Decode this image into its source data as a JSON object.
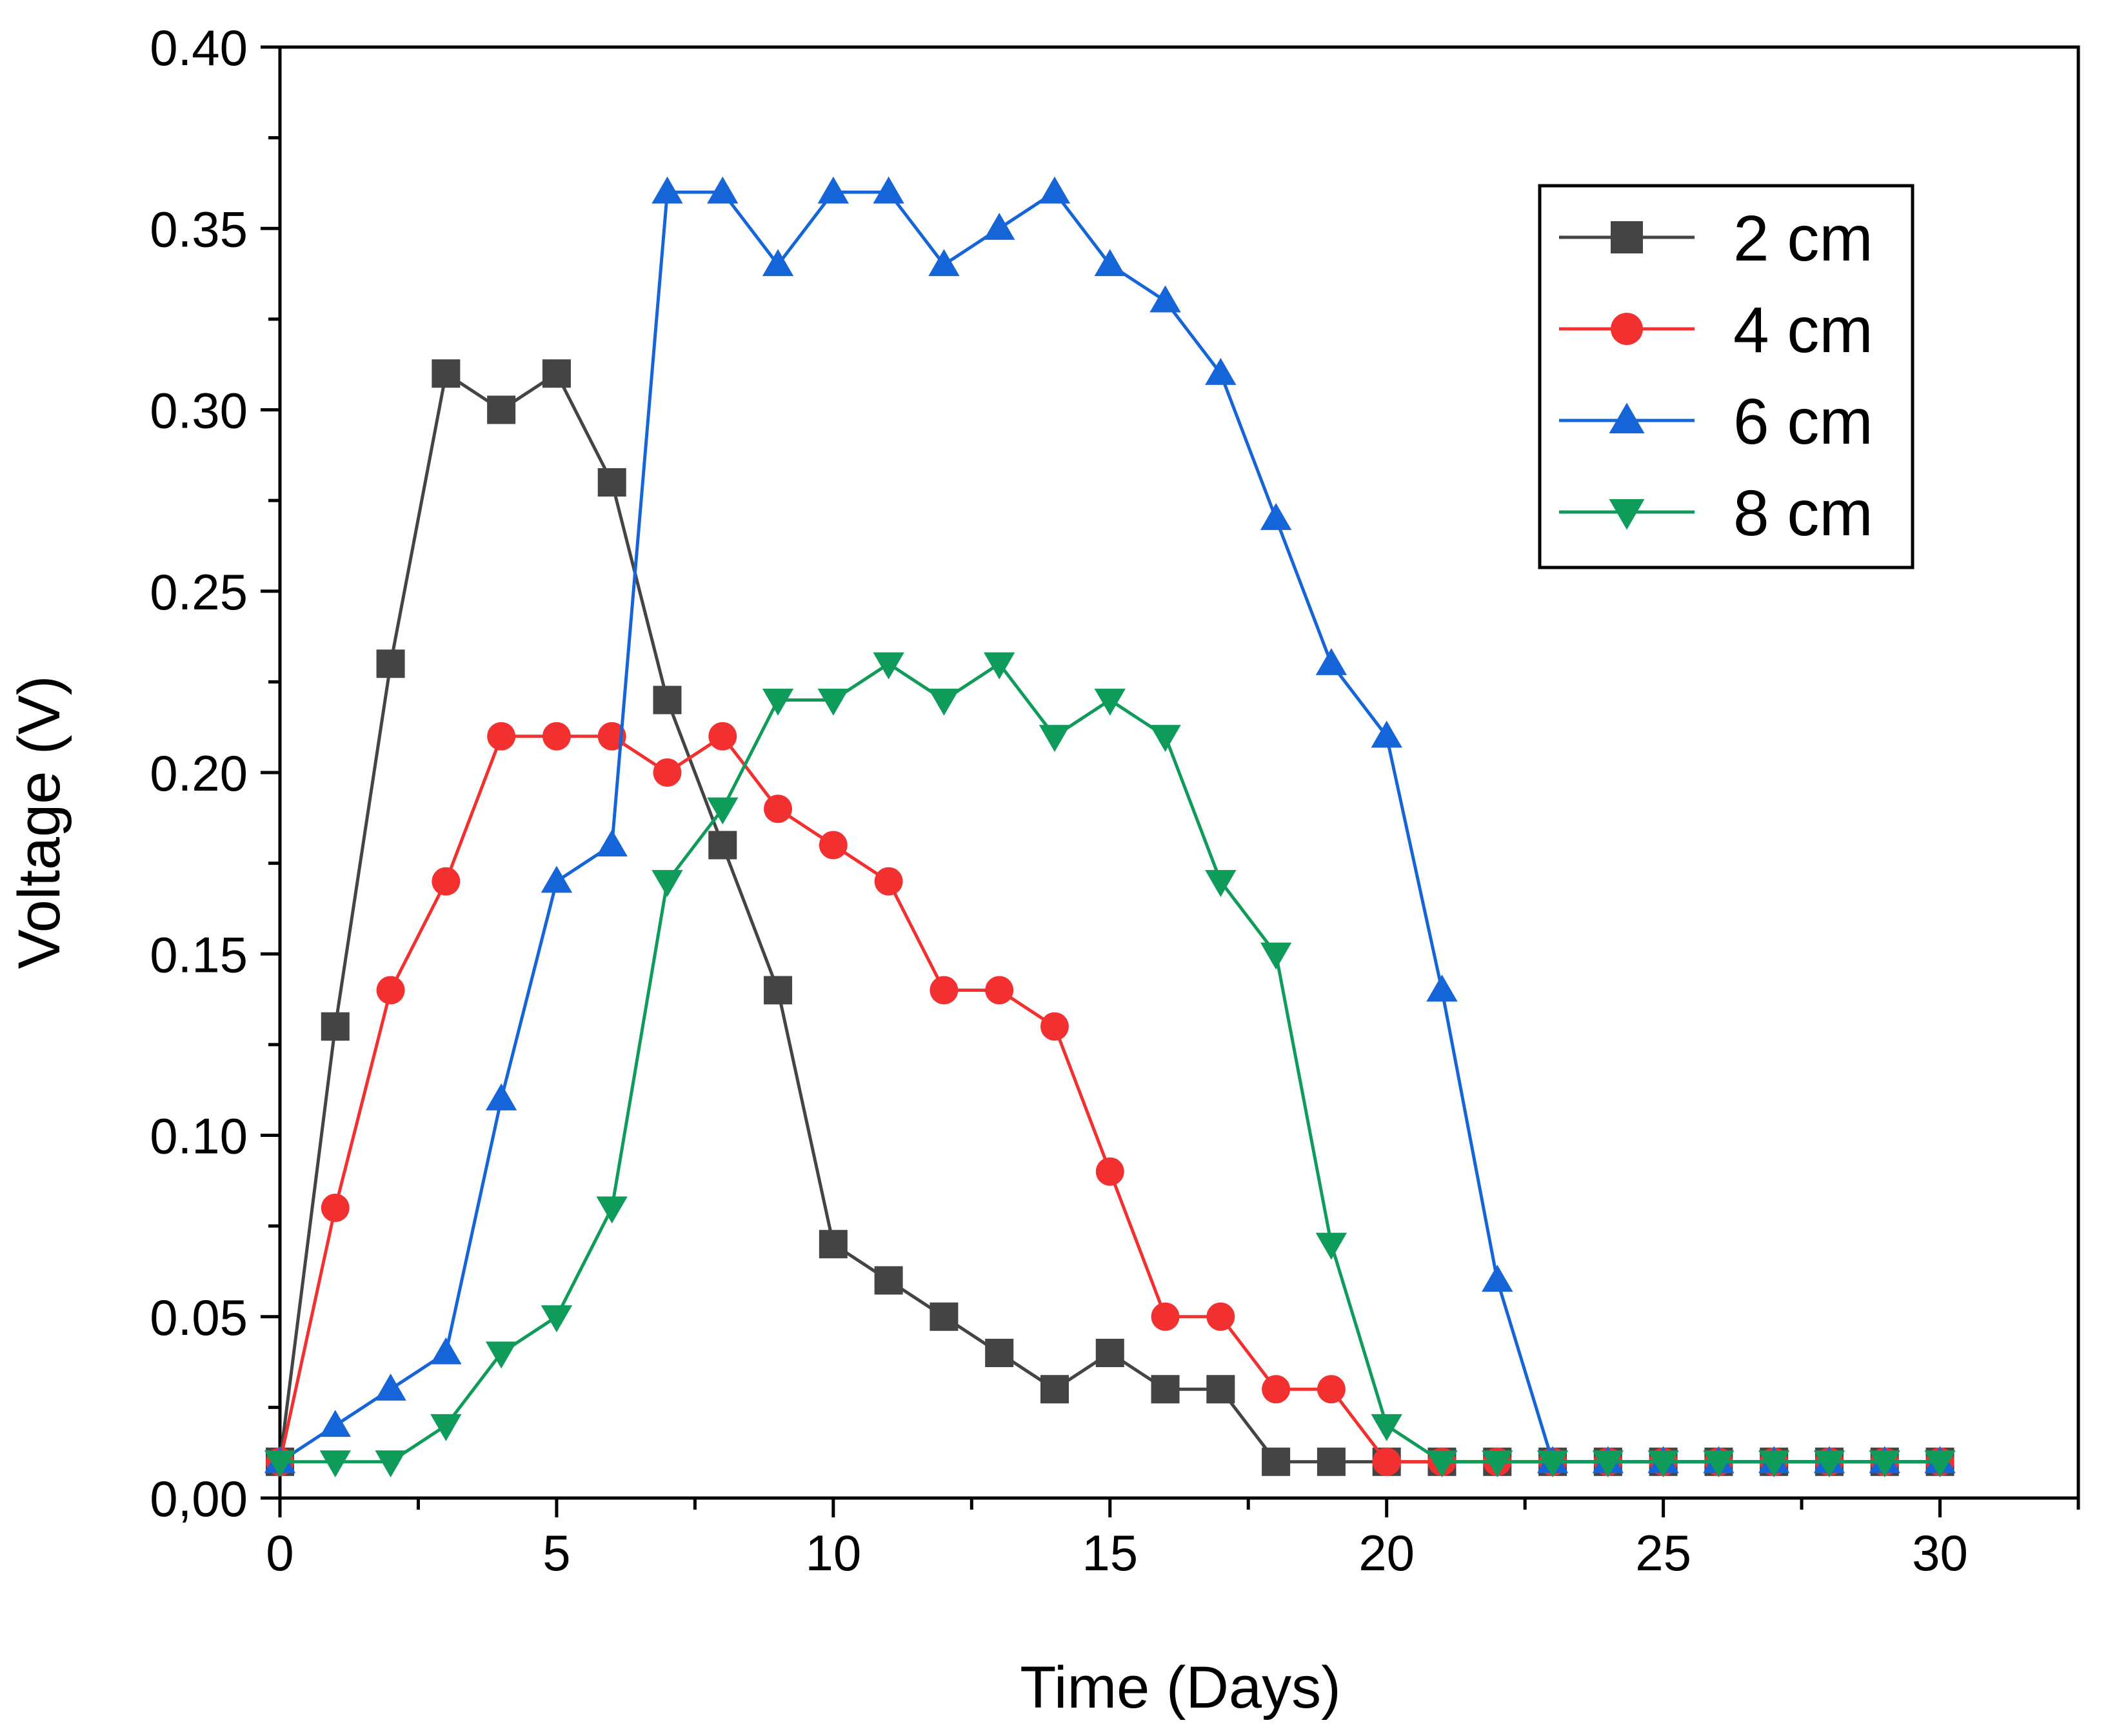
{
  "chart_data": {
    "type": "line",
    "title": "",
    "xlabel": "Time (Days)",
    "ylabel": "Voltage (V)",
    "xlim": [
      0,
      32.5
    ],
    "ylim": [
      0,
      0.4
    ],
    "x_ticks": [
      "0",
      "5",
      "10",
      "15",
      "20",
      "25",
      "30"
    ],
    "y_ticks": [
      "0,00",
      "0.05",
      "0.10",
      "0.15",
      "0.20",
      "0.25",
      "0.30",
      "0.35",
      "0.40"
    ],
    "x_tick_values": [
      0,
      5,
      10,
      15,
      20,
      25,
      30
    ],
    "y_tick_values": [
      0,
      0.05,
      0.1,
      0.15,
      0.2,
      0.25,
      0.3,
      0.35,
      0.4
    ],
    "grid": false,
    "legend_position": "top-right",
    "x": [
      0,
      1,
      2,
      3,
      4,
      5,
      6,
      7,
      8,
      9,
      10,
      11,
      12,
      13,
      14,
      15,
      16,
      17,
      18,
      19,
      20,
      21,
      22,
      23,
      24,
      25,
      26,
      27,
      28,
      29,
      30
    ],
    "series": [
      {
        "name": "2 cm",
        "color": "#444444",
        "marker": "square",
        "values": [
          0.01,
          0.13,
          0.23,
          0.31,
          0.3,
          0.31,
          0.28,
          0.22,
          0.18,
          0.14,
          0.07,
          0.06,
          0.05,
          0.04,
          0.03,
          0.04,
          0.03,
          0.03,
          0.01,
          0.01,
          0.01,
          0.01,
          0.01,
          0.01,
          0.01,
          0.01,
          0.01,
          0.01,
          0.01,
          0.01,
          0.01
        ]
      },
      {
        "name": "4 cm",
        "color": "#f23030",
        "marker": "circle",
        "values": [
          0.01,
          0.08,
          0.14,
          0.17,
          0.21,
          0.21,
          0.21,
          0.2,
          0.21,
          0.19,
          0.18,
          0.17,
          0.14,
          0.14,
          0.13,
          0.09,
          0.05,
          0.05,
          0.03,
          0.03,
          0.01,
          0.01,
          0.01,
          0.01,
          0.01,
          0.01,
          0.01,
          0.01,
          0.01,
          0.01,
          0.01
        ]
      },
      {
        "name": "6 cm",
        "color": "#1565d8",
        "marker": "triangle-up",
        "values": [
          0.01,
          0.02,
          0.03,
          0.04,
          0.11,
          0.17,
          0.18,
          0.36,
          0.36,
          0.34,
          0.36,
          0.36,
          0.34,
          0.35,
          0.36,
          0.34,
          0.33,
          0.31,
          0.27,
          0.23,
          0.21,
          0.14,
          0.06,
          0.01,
          0.01,
          0.01,
          0.01,
          0.01,
          0.01,
          0.01,
          0.01
        ]
      },
      {
        "name": "8 cm",
        "color": "#0f9b5a",
        "marker": "triangle-down",
        "values": [
          0.01,
          0.01,
          0.01,
          0.02,
          0.04,
          0.05,
          0.08,
          0.17,
          0.19,
          0.22,
          0.22,
          0.23,
          0.22,
          0.23,
          0.21,
          0.22,
          0.21,
          0.17,
          0.15,
          0.07,
          0.02,
          0.01,
          0.01,
          0.01,
          0.01,
          0.01,
          0.01,
          0.01,
          0.01,
          0.01,
          0.01
        ]
      }
    ]
  }
}
